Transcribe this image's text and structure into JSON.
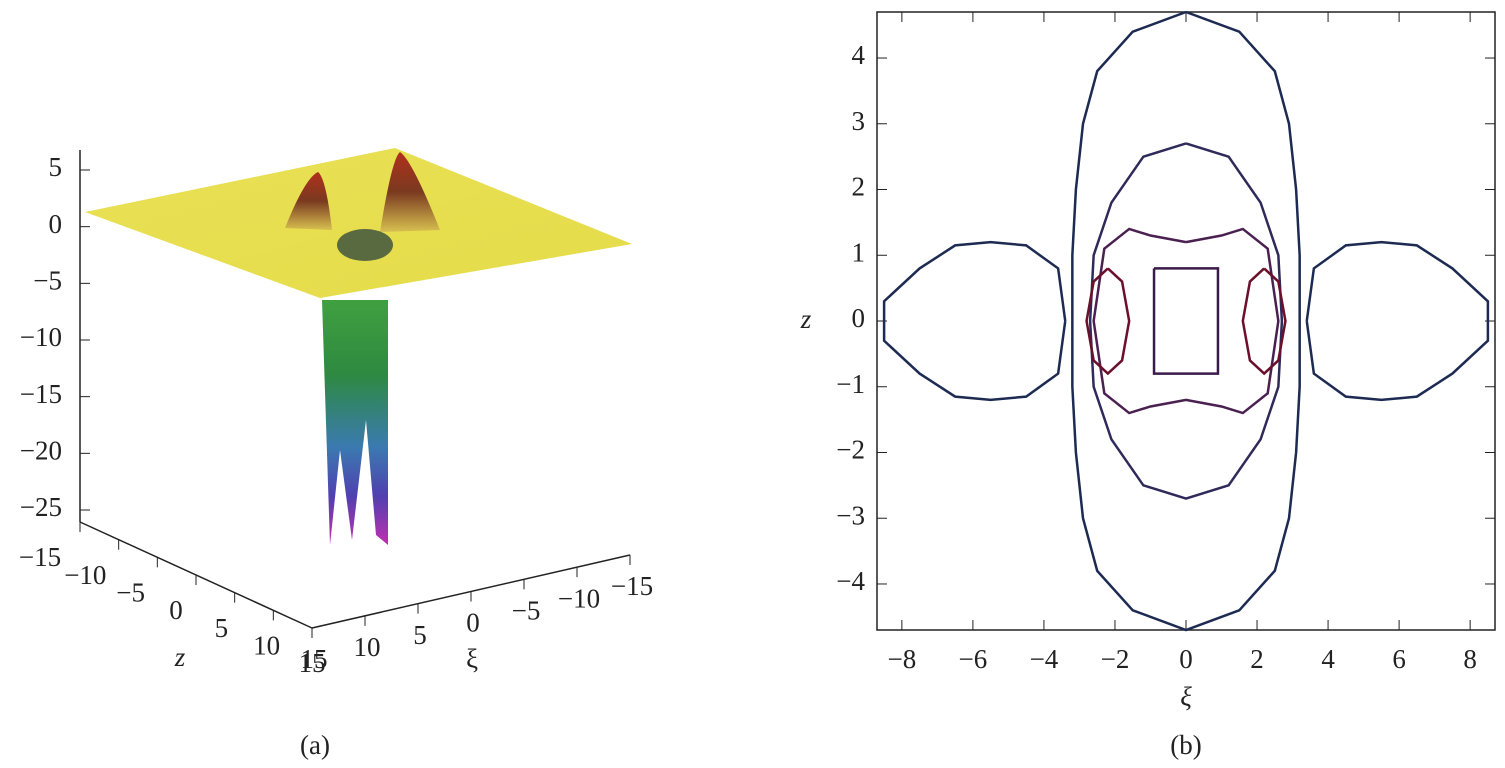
{
  "chart_data": [
    {
      "type": "surface3d",
      "caption": "(a)",
      "vlim": [
        -25,
        5
      ],
      "vticks": [
        5,
        0,
        {
          "value": -5,
          "label": "−5"
        },
        {
          "value": -10,
          "label": "−10"
        },
        {
          "value": -15,
          "label": "−15"
        },
        {
          "value": -20,
          "label": "−20"
        },
        {
          "value": -25,
          "label": "−25"
        }
      ],
      "zlim": [
        -15,
        15
      ],
      "zlabel": "z",
      "zticks": [
        {
          "value": -15,
          "label": "−15"
        },
        {
          "value": -10,
          "label": "−10"
        },
        {
          "value": -5,
          "label": "−5"
        },
        0,
        5,
        10,
        15
      ],
      "xilim": [
        15,
        -15
      ],
      "xilabel": "ξ",
      "xiticks": [
        15,
        10,
        5,
        0,
        {
          "value": -5,
          "label": "−5"
        },
        {
          "value": -10,
          "label": "−10"
        },
        {
          "value": -15,
          "label": "−15"
        }
      ]
    },
    {
      "type": "contour",
      "caption": "(b)",
      "xlabel": "ξ",
      "ylabel": "z",
      "xlim": [
        -8.7,
        8.7
      ],
      "ylim": [
        -4.7,
        4.7
      ],
      "xticks": [
        {
          "value": -8,
          "label": "−8"
        },
        {
          "value": -6,
          "label": "−6"
        },
        {
          "value": -4,
          "label": "−4"
        },
        {
          "value": -2,
          "label": "−2"
        },
        0,
        2,
        4,
        6,
        8
      ],
      "yticks": [
        {
          "value": -4,
          "label": "−4"
        },
        {
          "value": -3,
          "label": "−3"
        },
        {
          "value": -2,
          "label": "−2"
        },
        {
          "value": -1,
          "label": "−1"
        },
        0,
        1,
        2,
        3,
        4
      ],
      "contours": [
        {
          "color": "#1d2a52",
          "x": [
            0,
            1.5,
            2.5,
            2.9,
            3.1,
            3.2,
            3.2,
            3.2,
            3.1,
            2.9,
            2.5,
            1.5,
            0,
            -1.5,
            -2.5,
            -2.9,
            -3.1,
            -3.2,
            -3.2,
            -3.2,
            -3.1,
            -2.9,
            -2.5,
            -1.5,
            0
          ],
          "y": [
            4.7,
            4.4,
            3.8,
            3,
            2,
            1,
            0,
            -1,
            -2,
            -3,
            -3.8,
            -4.4,
            -4.7,
            -4.4,
            -3.8,
            -3,
            -2,
            -1,
            0,
            1,
            2,
            3,
            3.8,
            4.4,
            4.7
          ]
        },
        {
          "color": "#1d2a52",
          "x": [
            -3.4,
            -3.6,
            -4.5,
            -5.5,
            -6.5,
            -7.5,
            -8.5,
            -8.5,
            -7.5,
            -6.5,
            -5.5,
            -4.5,
            -3.6,
            -3.4
          ],
          "y": [
            0,
            0.8,
            1.15,
            1.2,
            1.15,
            0.8,
            0.3,
            -0.3,
            -0.8,
            -1.15,
            -1.2,
            -1.15,
            -0.8,
            0
          ]
        },
        {
          "color": "#1d2a52",
          "x": [
            3.4,
            3.6,
            4.5,
            5.5,
            6.5,
            7.5,
            8.5,
            8.5,
            7.5,
            6.5,
            5.5,
            4.5,
            3.6,
            3.4
          ],
          "y": [
            0,
            0.8,
            1.15,
            1.2,
            1.15,
            0.8,
            0.3,
            -0.3,
            -0.8,
            -1.15,
            -1.2,
            -1.15,
            -0.8,
            0
          ]
        },
        {
          "color": "#2e2a5a",
          "x": [
            0,
            1.2,
            2.1,
            2.6,
            2.7,
            2.6,
            2.1,
            1.2,
            0,
            -1.2,
            -2.1,
            -2.6,
            -2.7,
            -2.6,
            -2.1,
            -1.2,
            0
          ],
          "y": [
            2.7,
            2.5,
            1.8,
            1,
            0,
            -1,
            -1.8,
            -2.5,
            -2.7,
            -2.5,
            -1.8,
            -1,
            0,
            1,
            1.8,
            2.5,
            2.7
          ]
        },
        {
          "color": "#4a2050",
          "x": [
            0,
            1.0,
            1.6,
            2.3,
            2.6,
            2.3,
            1.6,
            1.0,
            0,
            -1.0,
            -1.6,
            -2.3,
            -2.6,
            -2.3,
            -1.6,
            -1.0,
            0
          ],
          "y": [
            1.2,
            1.3,
            1.4,
            1.1,
            0,
            -1.1,
            -1.4,
            -1.3,
            -1.2,
            -1.3,
            -1.4,
            -1.1,
            0,
            1.1,
            1.4,
            1.3,
            1.2
          ]
        },
        {
          "color": "#6b0f2a",
          "x": [
            -2.2,
            -1.8,
            -1.6,
            -1.8,
            -2.2,
            -2.6,
            -2.8,
            -2.6,
            -2.2
          ],
          "y": [
            0.8,
            0.6,
            0,
            -0.6,
            -0.8,
            -0.6,
            0,
            0.6,
            0.8
          ]
        },
        {
          "color": "#6b0f2a",
          "x": [
            2.2,
            2.6,
            2.8,
            2.6,
            2.2,
            1.8,
            1.6,
            1.8,
            2.2
          ],
          "y": [
            0.8,
            0.6,
            0,
            -0.6,
            -0.8,
            -0.6,
            0,
            0.6,
            0.8
          ]
        },
        {
          "color": "#3a1a4a",
          "x": [
            -0.9,
            0.9,
            0.9,
            -0.9,
            -0.9
          ],
          "y": [
            0.8,
            0.8,
            -0.8,
            -0.8,
            0.8
          ]
        }
      ]
    }
  ]
}
